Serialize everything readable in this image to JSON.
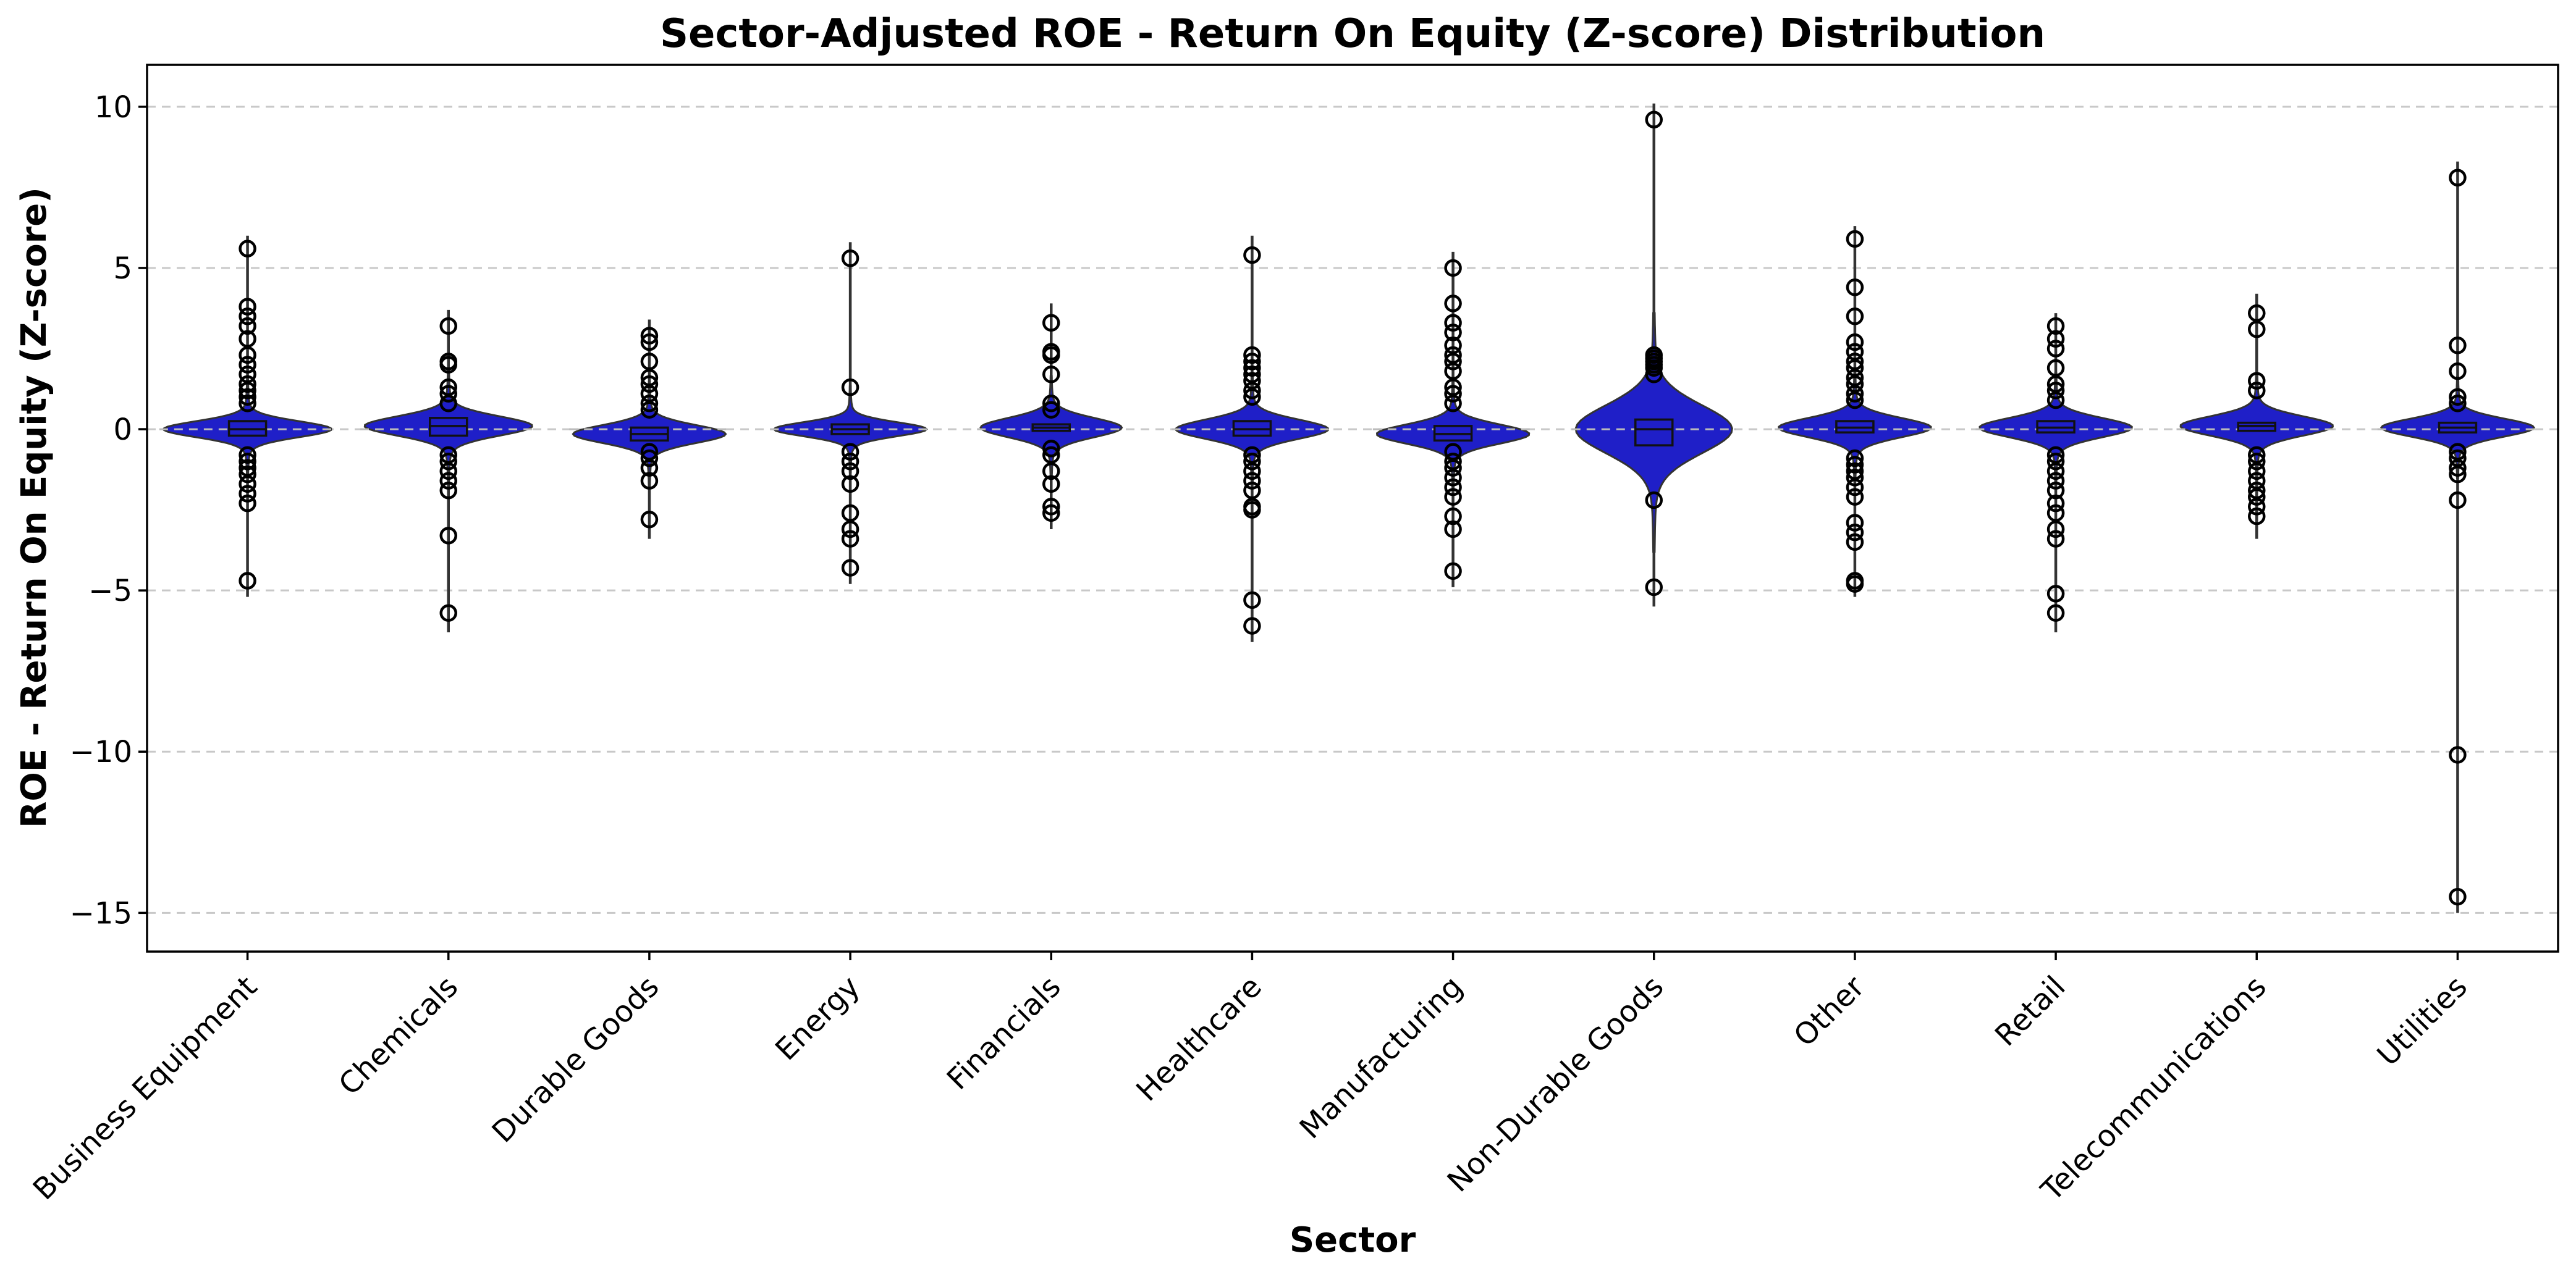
{
  "chart_data": {
    "type": "violin",
    "title": "Sector-Adjusted ROE - Return On Equity (Z-score) Distribution",
    "xlabel": "Sector",
    "ylabel": "ROE - Return On Equity (Z-score)",
    "ylim": [
      -16.2,
      11.3
    ],
    "yticks": [
      10,
      5,
      0,
      -5,
      -10,
      -15
    ],
    "ytick_labels": [
      "10",
      "5",
      "0",
      "−5",
      "−10",
      "−15"
    ],
    "grid": "horizontal dashed",
    "colors": {
      "violin": "#1f1fc8",
      "edge": "#333333",
      "grid": "#c8c8c8"
    },
    "categories": [
      "Business Equipment",
      "Chemicals",
      "Durable Goods",
      "Energy",
      "Financials",
      "Healthcare",
      "Manufacturing",
      "Non-Durable Goods",
      "Other",
      "Retail",
      "Telecommunications",
      "Utilities"
    ],
    "series": [
      {
        "category": "Business Equipment",
        "q1": -0.2,
        "median": 0.0,
        "q3": 0.25,
        "whisker_low": -5.2,
        "whisker_high": 6.0,
        "peak_width": 0.88,
        "spread": 0.25,
        "outliers": [
          5.6,
          3.8,
          3.5,
          3.2,
          2.8,
          2.3,
          2.0,
          1.7,
          1.4,
          1.2,
          1.0,
          0.8,
          -0.8,
          -1.0,
          -1.2,
          -1.4,
          -1.7,
          -2.0,
          -2.3,
          -4.7
        ]
      },
      {
        "category": "Chemicals",
        "q1": -0.2,
        "median": 0.1,
        "q3": 0.35,
        "whisker_low": -6.3,
        "whisker_high": 3.7,
        "peak_width": 0.88,
        "spread": 0.3,
        "outliers": [
          3.2,
          2.1,
          2.0,
          1.3,
          1.1,
          0.8,
          -0.8,
          -1.0,
          -1.3,
          -1.6,
          -1.9,
          -3.3,
          -5.7
        ]
      },
      {
        "category": "Durable Goods",
        "q1": -0.35,
        "median": -0.15,
        "q3": 0.05,
        "whisker_low": -3.4,
        "whisker_high": 3.4,
        "peak_width": 0.8,
        "spread": 0.28,
        "outliers": [
          2.9,
          2.7,
          2.1,
          1.6,
          1.4,
          1.1,
          0.8,
          0.6,
          -0.7,
          -0.9,
          -1.2,
          -1.6,
          -2.8
        ]
      },
      {
        "category": "Energy",
        "q1": -0.15,
        "median": 0.0,
        "q3": 0.15,
        "whisker_low": -4.8,
        "whisker_high": 5.8,
        "peak_width": 0.8,
        "spread": 0.22,
        "outliers": [
          5.3,
          1.3,
          -0.7,
          -1.0,
          -1.3,
          -1.7,
          -2.6,
          -3.1,
          -3.4,
          -4.3
        ]
      },
      {
        "category": "Financials",
        "q1": -0.05,
        "median": 0.05,
        "q3": 0.15,
        "whisker_low": -3.1,
        "whisker_high": 3.9,
        "peak_width": 0.74,
        "spread": 0.3,
        "outliers": [
          3.3,
          2.4,
          2.3,
          1.7,
          0.8,
          0.6,
          -0.6,
          -0.8,
          -1.3,
          -1.7,
          -2.4,
          -2.6
        ]
      },
      {
        "category": "Healthcare",
        "q1": -0.2,
        "median": 0.0,
        "q3": 0.25,
        "whisker_low": -6.6,
        "whisker_high": 6.0,
        "peak_width": 0.8,
        "spread": 0.3,
        "outliers": [
          5.4,
          2.3,
          2.1,
          1.9,
          1.7,
          1.5,
          1.2,
          1.0,
          -0.8,
          -1.0,
          -1.3,
          -1.6,
          -1.9,
          -2.4,
          -2.5,
          -5.3,
          -6.1
        ]
      },
      {
        "category": "Manufacturing",
        "q1": -0.35,
        "median": -0.15,
        "q3": 0.1,
        "whisker_low": -4.9,
        "whisker_high": 5.5,
        "peak_width": 0.8,
        "spread": 0.3,
        "outliers": [
          5.0,
          3.9,
          3.3,
          3.0,
          2.6,
          2.3,
          2.1,
          1.8,
          1.3,
          1.1,
          0.8,
          -0.7,
          -1.0,
          -1.2,
          -1.5,
          -1.8,
          -2.1,
          -2.7,
          -3.1,
          -4.4
        ]
      },
      {
        "category": "Non-Durable Goods",
        "q1": -0.5,
        "median": 0.0,
        "q3": 0.3,
        "whisker_low": -5.5,
        "whisker_high": 10.1,
        "peak_width": 0.82,
        "spread": 0.75,
        "outliers": [
          9.6,
          2.3,
          2.2,
          2.1,
          2.0,
          1.9,
          1.7,
          -2.2,
          -4.9
        ]
      },
      {
        "category": "Other",
        "q1": -0.1,
        "median": 0.05,
        "q3": 0.25,
        "whisker_low": -5.2,
        "whisker_high": 6.3,
        "peak_width": 0.8,
        "spread": 0.3,
        "outliers": [
          5.9,
          4.4,
          3.5,
          2.7,
          2.4,
          2.1,
          1.9,
          1.6,
          1.4,
          1.1,
          0.9,
          -0.9,
          -1.1,
          -1.3,
          -1.5,
          -1.8,
          -2.1,
          -2.9,
          -3.2,
          -3.5,
          -4.7,
          -4.8
        ]
      },
      {
        "category": "Retail",
        "q1": -0.1,
        "median": 0.05,
        "q3": 0.25,
        "whisker_low": -6.3,
        "whisker_high": 3.6,
        "peak_width": 0.8,
        "spread": 0.3,
        "outliers": [
          3.2,
          2.8,
          2.5,
          1.9,
          1.4,
          1.2,
          0.9,
          -0.8,
          -1.0,
          -1.3,
          -1.6,
          -1.9,
          -2.3,
          -2.6,
          -3.1,
          -3.4,
          -5.1,
          -5.7
        ]
      },
      {
        "category": "Telecommunications",
        "q1": -0.05,
        "median": 0.1,
        "q3": 0.2,
        "whisker_low": -3.4,
        "whisker_high": 4.2,
        "peak_width": 0.8,
        "spread": 0.3,
        "outliers": [
          3.6,
          3.1,
          1.5,
          1.2,
          -0.8,
          -1.0,
          -1.3,
          -1.6,
          -1.9,
          -2.1,
          -2.4,
          -2.7
        ]
      },
      {
        "category": "Utilities",
        "q1": -0.1,
        "median": 0.05,
        "q3": 0.2,
        "whisker_low": -15.0,
        "whisker_high": 8.3,
        "peak_width": 0.8,
        "spread": 0.28,
        "outliers": [
          7.8,
          2.6,
          1.8,
          1.0,
          0.8,
          -0.7,
          -0.9,
          -1.2,
          -1.4,
          -2.2,
          -10.1,
          -14.5
        ]
      }
    ]
  }
}
